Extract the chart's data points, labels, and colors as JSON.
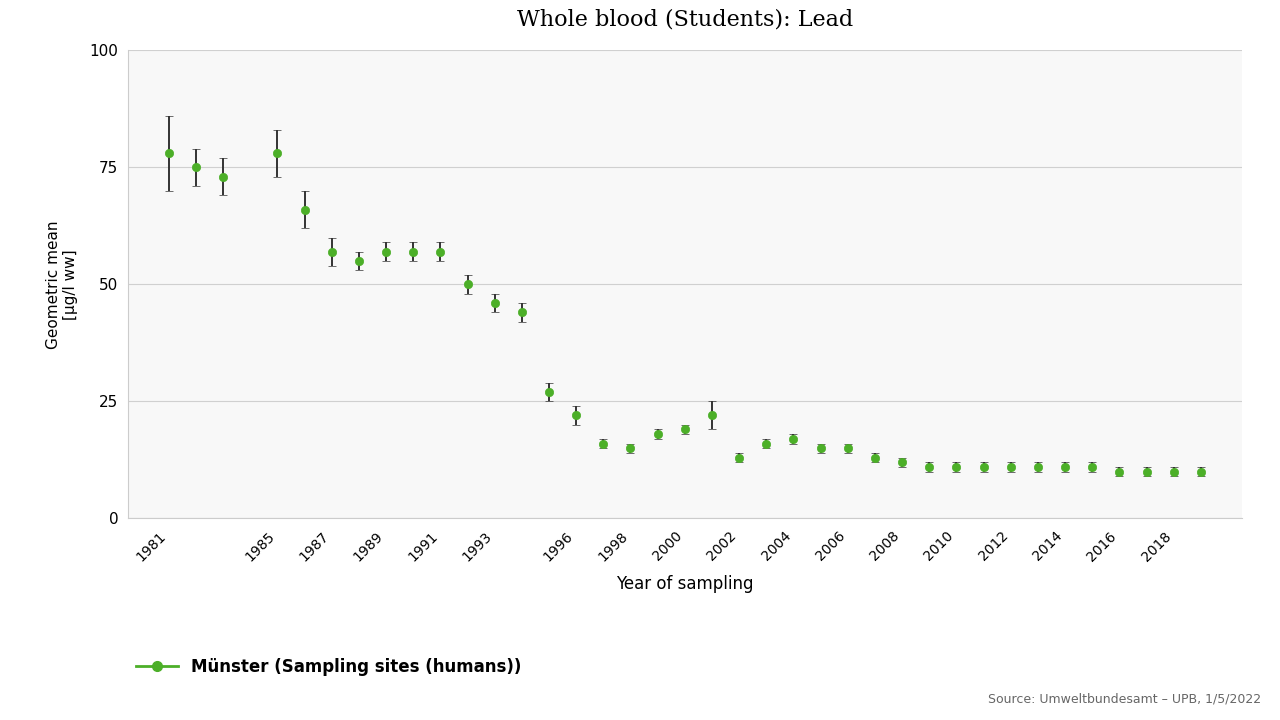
{
  "title": "Whole blood (Students): Lead",
  "xlabel": "Year of sampling",
  "ylabel": "Geometric mean\n[µg/l ww]",
  "source": "Source: Umweltbundesamt – UPB, 1/5/2022",
  "legend_label": "Münster (Sampling sites (humans))",
  "line_color": "#4caf28",
  "marker_color": "#4caf28",
  "error_color": "#333333",
  "bg_color": "#ffffff",
  "plot_bg_color": "#f8f8f8",
  "ylim": [
    0,
    100
  ],
  "yticks": [
    0,
    25,
    50,
    75,
    100
  ],
  "xtick_labels": [
    "1981",
    "1985",
    "1987",
    "1989",
    "1991",
    "1993",
    "1996",
    "1998",
    "2000",
    "2002",
    "2004",
    "2006",
    "2008",
    "2010",
    "2012",
    "2014",
    "2016",
    "2018"
  ],
  "years": [
    1981,
    1982,
    1983,
    1985,
    1986,
    1987,
    1988,
    1989,
    1990,
    1991,
    1992,
    1993,
    1994,
    1995,
    1996,
    1997,
    1998,
    1999,
    2000,
    2001,
    2002,
    2003,
    2004,
    2005,
    2006,
    2007,
    2008,
    2009,
    2010,
    2011,
    2012,
    2013,
    2014,
    2015,
    2016,
    2017,
    2018,
    2019
  ],
  "values": [
    78,
    75,
    73,
    78,
    66,
    57,
    55,
    57,
    57,
    57,
    50,
    46,
    44,
    27,
    22,
    16,
    15,
    18,
    19,
    22,
    13,
    16,
    17,
    15,
    15,
    13,
    12,
    11,
    11,
    11,
    11,
    11,
    11,
    11,
    10,
    10,
    10,
    10
  ],
  "yerr_low": [
    8,
    4,
    4,
    5,
    4,
    3,
    2,
    2,
    2,
    2,
    2,
    2,
    2,
    2,
    2,
    1,
    1,
    1,
    1,
    3,
    1,
    1,
    1,
    1,
    1,
    1,
    1,
    1,
    1,
    1,
    1,
    1,
    1,
    1,
    1,
    1,
    1,
    1
  ],
  "yerr_high": [
    8,
    4,
    4,
    5,
    4,
    3,
    2,
    2,
    2,
    2,
    2,
    2,
    2,
    2,
    2,
    1,
    1,
    1,
    1,
    3,
    1,
    1,
    1,
    1,
    1,
    1,
    1,
    1,
    1,
    1,
    1,
    1,
    1,
    1,
    1,
    1,
    1,
    1
  ]
}
